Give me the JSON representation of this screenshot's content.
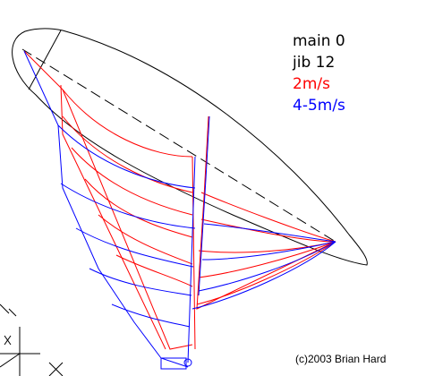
{
  "legend": {
    "lines": [
      "main 0",
      "jib 12"
    ],
    "entries": [
      {
        "label": "2m/s",
        "color": "#ff0000"
      },
      {
        "label": "4-5m/s",
        "color": "#0000ff"
      }
    ]
  },
  "credit": "(c)2003 Brian Hard"
}
